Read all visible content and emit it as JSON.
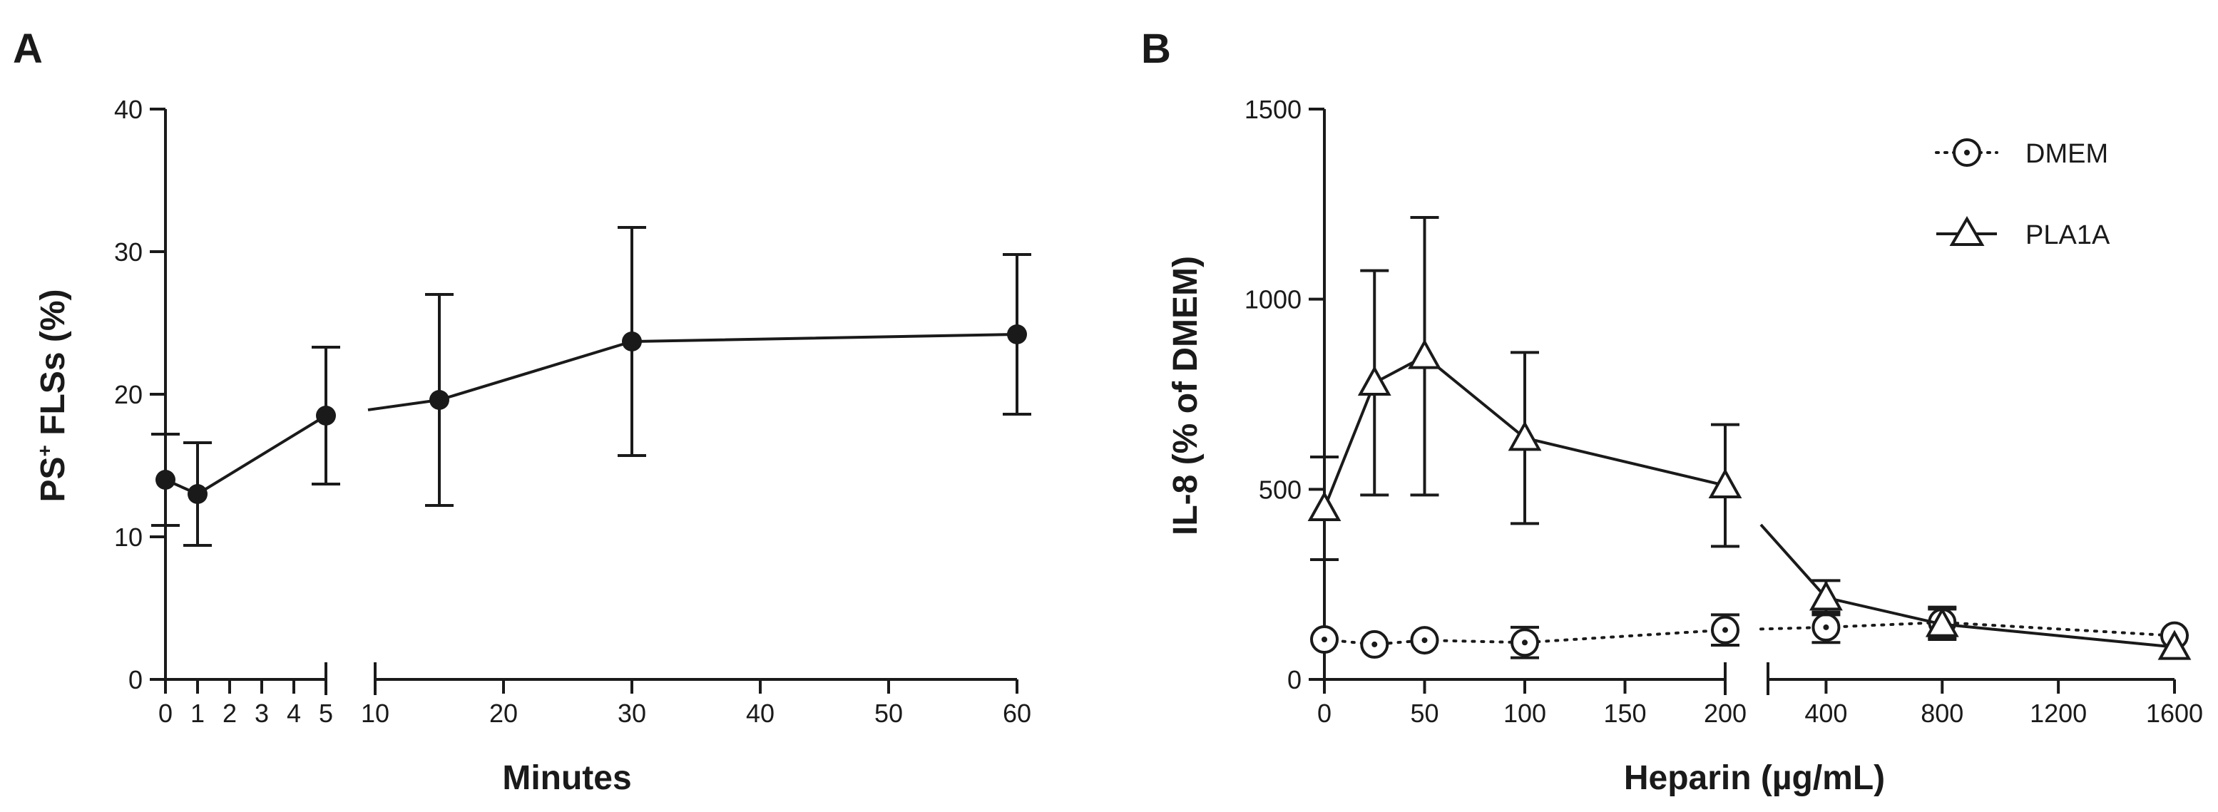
{
  "chart_data": [
    {
      "panel": "A",
      "type": "line",
      "xlabel": "Minutes",
      "ylabel_main": "PS",
      "ylabel_sup": "+",
      "ylabel_rest": " FLSs (%)",
      "ylim": [
        0,
        40
      ],
      "yticks": [
        0,
        10,
        20,
        30,
        40
      ],
      "x_segments": [
        {
          "range": [
            0,
            5
          ],
          "ticks": [
            0,
            1,
            2,
            3,
            4,
            5
          ]
        },
        {
          "range": [
            10,
            60
          ],
          "ticks": [
            10,
            20,
            30,
            40,
            50,
            60
          ]
        }
      ],
      "series": [
        {
          "name": "PS+ FLSs",
          "marker": "filled-circle",
          "line": "solid",
          "points": [
            {
              "x": 0,
              "y": 14.0,
              "err": 3.2
            },
            {
              "x": 1,
              "y": 13.0,
              "err": 3.6
            },
            {
              "x": 5,
              "y": 18.5,
              "err": 4.8
            },
            {
              "x": 15,
              "y": 19.6,
              "err": 7.4
            },
            {
              "x": 30,
              "y": 23.7,
              "err": 8.0
            },
            {
              "x": 60,
              "y": 24.2,
              "err": 5.6
            }
          ],
          "break_stub": {
            "from": [
              5,
              18.5
            ],
            "to": [
              15,
              19.6
            ]
          }
        }
      ]
    },
    {
      "panel": "B",
      "type": "line",
      "xlabel": "Heparin (µg/mL)",
      "ylabel": "IL-8 (% of DMEM)",
      "ylim": [
        0,
        1500
      ],
      "yticks": [
        0,
        500,
        1000,
        1500
      ],
      "x_segments": [
        {
          "range": [
            0,
            200
          ],
          "ticks": [
            0,
            50,
            100,
            150,
            200
          ]
        },
        {
          "range": [
            200,
            1600
          ],
          "ticks": [
            400,
            800,
            1200,
            1600
          ]
        }
      ],
      "legend_position": "top-right",
      "series": [
        {
          "name": "DMEM",
          "marker": "open-circle-dot",
          "line": "dotted",
          "points": [
            {
              "x": 0,
              "y": 105,
              "err": 0
            },
            {
              "x": 25,
              "y": 92,
              "err": 0
            },
            {
              "x": 50,
              "y": 103,
              "err": 0
            },
            {
              "x": 100,
              "y": 97,
              "err": 40
            },
            {
              "x": 200,
              "y": 130,
              "err": 40
            },
            {
              "x": 400,
              "y": 137,
              "err": 40
            },
            {
              "x": 800,
              "y": 150,
              "err": 40
            },
            {
              "x": 1600,
              "y": 115,
              "err": 0
            }
          ],
          "break_stub": {
            "from": [
              200,
              130
            ],
            "to": [
              400,
              137
            ]
          }
        },
        {
          "name": "PLA1A",
          "marker": "open-triangle",
          "line": "solid",
          "points": [
            {
              "x": 0,
              "y": 450,
              "err": 135
            },
            {
              "x": 25,
              "y": 780,
              "err": 295
            },
            {
              "x": 50,
              "y": 850,
              "err": 365
            },
            {
              "x": 100,
              "y": 635,
              "err": 225
            },
            {
              "x": 200,
              "y": 510,
              "err": 160
            },
            {
              "x": 400,
              "y": 215,
              "err": 45
            },
            {
              "x": 800,
              "y": 145,
              "err": 40
            },
            {
              "x": 1600,
              "y": 85,
              "err": 0
            }
          ],
          "break_stub": {
            "from": [
              200,
              510
            ],
            "to": [
              400,
              215
            ]
          }
        }
      ]
    }
  ]
}
